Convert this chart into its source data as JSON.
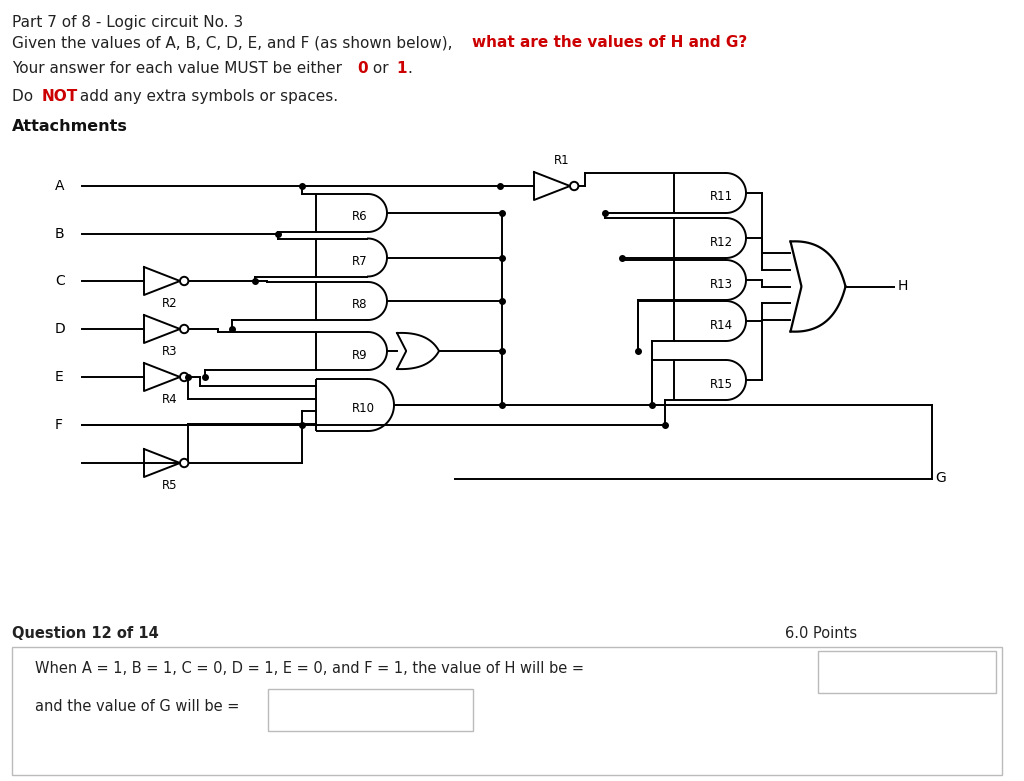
{
  "bg_color": "#ffffff",
  "text_color": "#222222",
  "red_color": "#cc0000",
  "title_line1": "Part 7 of 8 - Logic circuit No. 3",
  "input_labels": [
    "A",
    "B",
    "C",
    "D",
    "E",
    "F"
  ],
  "gate_labels_not": [
    "R2",
    "R3",
    "R4",
    "R5"
  ],
  "gate_labels_and1": [
    "R6",
    "R7",
    "R8",
    "R9",
    "R10"
  ],
  "gate_labels_and2": [
    "R11",
    "R12",
    "R13",
    "R14",
    "R15"
  ],
  "r1_label": "R1",
  "question_label": "Question 12 of 14",
  "points_label": "6.0 Points",
  "answer_text1": "When A = 1, B = 1, C = 0, D = 1, E = 0, and F = 1, the value of H will be =",
  "answer_text2": "and the value of G will be ="
}
